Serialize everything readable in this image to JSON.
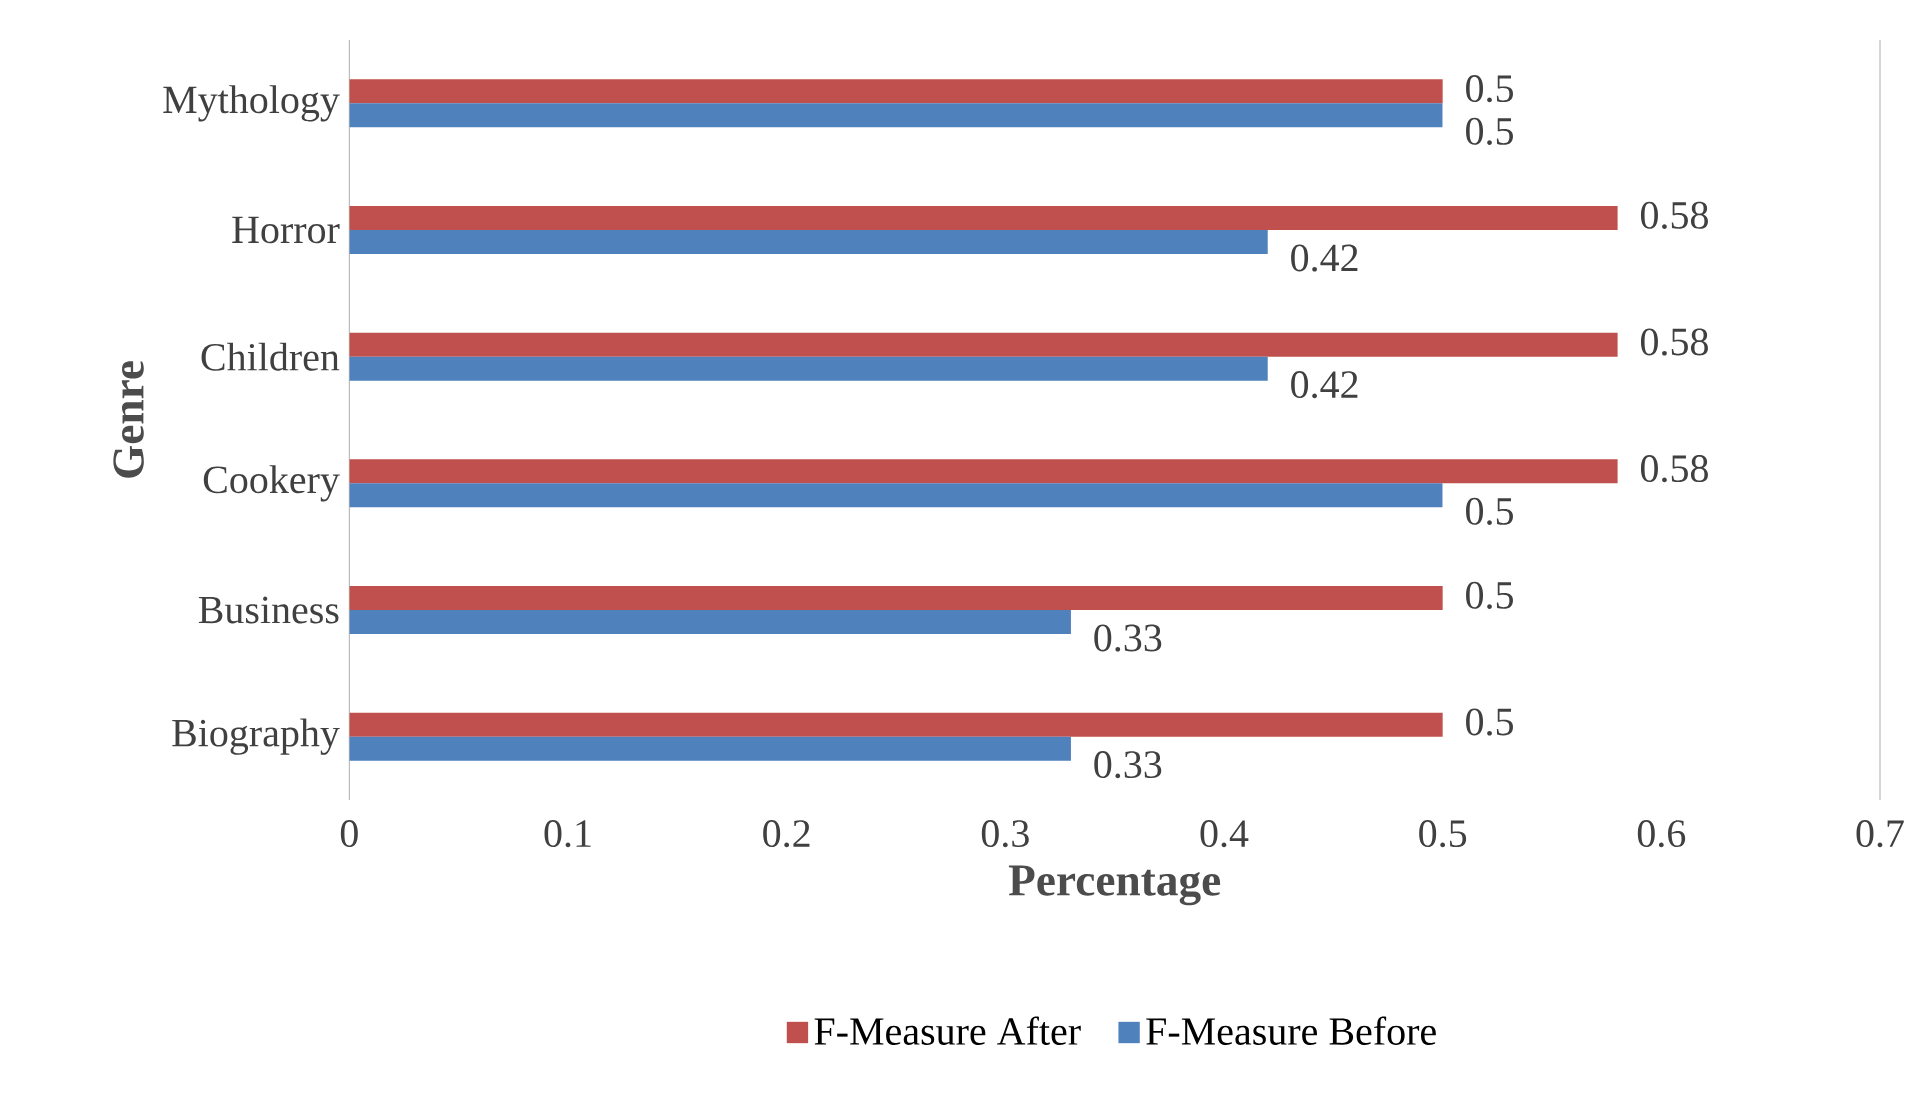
{
  "chart_data": {
    "type": "bar",
    "orientation": "horizontal",
    "xlabel": "Percentage",
    "ylabel": "Genre",
    "categories": [
      "Mythology",
      "Horror",
      "Children",
      "Cookery",
      "Business",
      "Biography"
    ],
    "series": [
      {
        "name": "F-Measure After",
        "color": "#c0504d",
        "values": [
          0.5,
          0.58,
          0.58,
          0.58,
          0.5,
          0.5
        ]
      },
      {
        "name": "F-Measure Before",
        "color": "#4f81bd",
        "values": [
          0.5,
          0.42,
          0.42,
          0.5,
          0.33,
          0.33
        ]
      }
    ],
    "xlim": [
      0,
      0.7
    ],
    "xticks": [
      0,
      0.1,
      0.2,
      0.3,
      0.4,
      0.5,
      0.6,
      0.7
    ],
    "data_labels": true,
    "legend": "bottom"
  }
}
